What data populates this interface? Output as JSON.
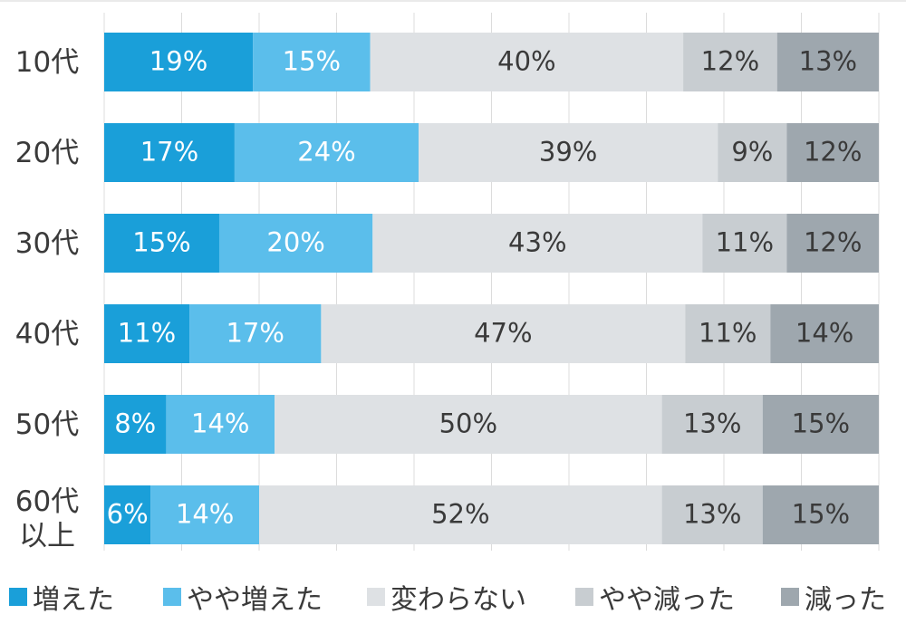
{
  "chart_data": {
    "type": "bar",
    "orientation": "horizontal",
    "stacked": true,
    "categories": [
      "10代",
      "20代",
      "30代",
      "40代",
      "50代",
      "60代以上"
    ],
    "category_lines": [
      [
        "10代"
      ],
      [
        "20代"
      ],
      [
        "30代"
      ],
      [
        "40代"
      ],
      [
        "50代"
      ],
      [
        "60代",
        "以上"
      ]
    ],
    "series": [
      {
        "name": "増えた",
        "color": "#1a9fd9",
        "values": [
          19,
          17,
          15,
          11,
          8,
          6
        ],
        "labels": [
          "19%",
          "17%",
          "15%",
          "11%",
          "8%",
          "6%"
        ]
      },
      {
        "name": "やや増えた",
        "color": "#5bbeeb",
        "values": [
          15,
          24,
          20,
          17,
          14,
          14
        ],
        "labels": [
          "15%",
          "24%",
          "20%",
          "17%",
          "14%",
          "14%"
        ]
      },
      {
        "name": "変わらない",
        "color": "#dee1e4",
        "values": [
          40,
          39,
          43,
          47,
          50,
          52
        ],
        "labels": [
          "40%",
          "39%",
          "43%",
          "47%",
          "50%",
          "52%"
        ]
      },
      {
        "name": "やや減った",
        "color": "#c8cdd1",
        "values": [
          12,
          9,
          11,
          11,
          13,
          13
        ],
        "labels": [
          "12%",
          "9%",
          "11%",
          "11%",
          "13%",
          "13%"
        ]
      },
      {
        "name": "減った",
        "color": "#9ea7ae",
        "values": [
          13,
          12,
          12,
          14,
          15,
          15
        ],
        "labels": [
          "13%",
          "12%",
          "12%",
          "14%",
          "15%",
          "15%"
        ]
      }
    ],
    "xlim": [
      0,
      100
    ],
    "grid": true,
    "legend_position": "bottom",
    "label_colors": {
      "light": "#ffffff",
      "dark": "#3a3a3a"
    }
  }
}
